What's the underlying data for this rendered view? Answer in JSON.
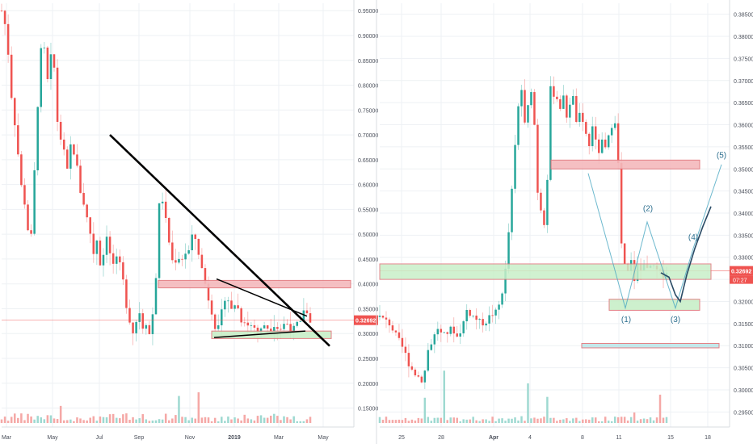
{
  "colors": {
    "up": "#26a69a",
    "down": "#ef5350",
    "vol_up": "#9ed9d1",
    "vol_down": "#f5a8a6",
    "grid": "#eef1f4",
    "axis_text": "#4a4f5a",
    "last_price": "#ef5350",
    "drawing": "#000000",
    "wave": "#4aa7c2",
    "wave_path": "#2a4b66",
    "res_box": "#f4b9bc",
    "sup_box": "#c8efc8"
  },
  "chart_data": [
    {
      "type": "candlestick",
      "panel": "left",
      "title": "",
      "x_ticks": [
        "Mar",
        "May",
        "Jul",
        "Sep",
        "Nov",
        "2019",
        "Mar",
        "May"
      ],
      "y_ticks": [
        "0.95000",
        "0.90000",
        "0.85000",
        "0.80000",
        "0.75000",
        "0.70000",
        "0.65000",
        "0.60000",
        "0.55000",
        "0.50000",
        "0.45000",
        "0.40000",
        "0.35000",
        "0.30000",
        "0.25000",
        "0.20000",
        "0.15000"
      ],
      "ylim": [
        0.12,
        0.965
      ],
      "last_price": "0.32692",
      "close_path": [
        [
          0,
          0.95
        ],
        [
          6,
          0.91
        ],
        [
          12,
          0.78
        ],
        [
          18,
          0.7
        ],
        [
          24,
          0.6
        ],
        [
          30,
          0.55
        ],
        [
          35,
          0.47
        ],
        [
          38,
          0.52
        ],
        [
          42,
          0.68
        ],
        [
          46,
          0.8
        ],
        [
          50,
          0.9
        ],
        [
          54,
          0.86
        ],
        [
          58,
          0.79
        ],
        [
          62,
          0.88
        ],
        [
          66,
          0.82
        ],
        [
          70,
          0.7
        ],
        [
          74,
          0.69
        ],
        [
          78,
          0.66
        ],
        [
          82,
          0.62
        ],
        [
          86,
          0.69
        ],
        [
          90,
          0.66
        ],
        [
          94,
          0.63
        ],
        [
          98,
          0.58
        ],
        [
          102,
          0.56
        ],
        [
          106,
          0.53
        ],
        [
          110,
          0.5
        ],
        [
          114,
          0.46
        ],
        [
          118,
          0.49
        ],
        [
          122,
          0.44
        ],
        [
          126,
          0.46
        ],
        [
          130,
          0.5
        ],
        [
          134,
          0.46
        ],
        [
          138,
          0.44
        ],
        [
          142,
          0.45
        ],
        [
          146,
          0.44
        ],
        [
          150,
          0.41
        ],
        [
          154,
          0.36
        ],
        [
          158,
          0.33
        ],
        [
          162,
          0.3
        ],
        [
          166,
          0.32
        ],
        [
          170,
          0.35
        ],
        [
          174,
          0.31
        ],
        [
          178,
          0.33
        ],
        [
          182,
          0.29
        ],
        [
          186,
          0.33
        ],
        [
          190,
          0.37
        ],
        [
          194,
          0.55
        ],
        [
          198,
          0.58
        ],
        [
          202,
          0.54
        ],
        [
          206,
          0.5
        ],
        [
          210,
          0.45
        ],
        [
          214,
          0.44
        ],
        [
          218,
          0.46
        ],
        [
          222,
          0.44
        ],
        [
          226,
          0.47
        ],
        [
          230,
          0.45
        ],
        [
          234,
          0.49
        ],
        [
          238,
          0.5
        ],
        [
          242,
          0.48
        ],
        [
          246,
          0.44
        ],
        [
          250,
          0.42
        ],
        [
          254,
          0.38
        ],
        [
          258,
          0.36
        ],
        [
          262,
          0.33
        ],
        [
          266,
          0.3
        ],
        [
          270,
          0.32
        ],
        [
          274,
          0.36
        ],
        [
          278,
          0.38
        ],
        [
          282,
          0.36
        ],
        [
          286,
          0.34
        ],
        [
          290,
          0.37
        ],
        [
          294,
          0.34
        ],
        [
          298,
          0.32
        ],
        [
          302,
          0.33
        ],
        [
          306,
          0.31
        ],
        [
          310,
          0.32
        ],
        [
          314,
          0.31
        ],
        [
          318,
          0.3
        ],
        [
          322,
          0.31
        ],
        [
          326,
          0.32
        ],
        [
          330,
          0.31
        ],
        [
          334,
          0.31
        ],
        [
          338,
          0.32
        ],
        [
          342,
          0.31
        ],
        [
          346,
          0.31
        ],
        [
          350,
          0.32
        ],
        [
          354,
          0.32
        ],
        [
          358,
          0.31
        ],
        [
          362,
          0.31
        ],
        [
          366,
          0.32
        ],
        [
          370,
          0.32
        ],
        [
          374,
          0.35
        ],
        [
          378,
          0.34
        ],
        [
          382,
          0.327
        ]
      ]
    },
    {
      "type": "candlestick",
      "panel": "right",
      "title": "",
      "x_ticks": [
        "25",
        "28",
        "Apr",
        "4",
        "8",
        "11",
        "15",
        "18"
      ],
      "y_ticks": [
        "0.38500",
        "0.38000",
        "0.37500",
        "0.37000",
        "0.36500",
        "0.36000",
        "0.35500",
        "0.35000",
        "0.34500",
        "0.34000",
        "0.33500",
        "0.33000",
        "0.32500",
        "0.32000",
        "0.31500",
        "0.31000",
        "0.30500",
        "0.30000",
        "0.29500"
      ],
      "ylim": [
        0.2925,
        0.3875
      ],
      "last_price": "0.32692",
      "countdown": "07:27",
      "wave_labels": [
        "(1)",
        "(2)",
        "(3)",
        "(4)",
        "(5)"
      ],
      "close_path": [
        [
          0,
          0.3165
        ],
        [
          6,
          0.3158
        ],
        [
          12,
          0.315
        ],
        [
          18,
          0.313
        ],
        [
          24,
          0.311
        ],
        [
          30,
          0.309
        ],
        [
          36,
          0.306
        ],
        [
          42,
          0.304
        ],
        [
          48,
          0.303
        ],
        [
          54,
          0.302
        ],
        [
          60,
          0.309
        ],
        [
          66,
          0.3115
        ],
        [
          72,
          0.314
        ],
        [
          78,
          0.312
        ],
        [
          84,
          0.313
        ],
        [
          90,
          0.314
        ],
        [
          96,
          0.312
        ],
        [
          102,
          0.314
        ],
        [
          108,
          0.318
        ],
        [
          114,
          0.317
        ],
        [
          120,
          0.316
        ],
        [
          126,
          0.315
        ],
        [
          132,
          0.3155
        ],
        [
          138,
          0.317
        ],
        [
          144,
          0.3175
        ],
        [
          150,
          0.32
        ],
        [
          156,
          0.327
        ],
        [
          162,
          0.34
        ],
        [
          168,
          0.355
        ],
        [
          172,
          0.364
        ],
        [
          176,
          0.368
        ],
        [
          180,
          0.36
        ],
        [
          184,
          0.364
        ],
        [
          188,
          0.368
        ],
        [
          192,
          0.36
        ],
        [
          196,
          0.345
        ],
        [
          200,
          0.341
        ],
        [
          204,
          0.338
        ],
        [
          208,
          0.348
        ],
        [
          212,
          0.368
        ],
        [
          216,
          0.367
        ],
        [
          220,
          0.366
        ],
        [
          224,
          0.364
        ],
        [
          228,
          0.366
        ],
        [
          232,
          0.362
        ],
        [
          236,
          0.365
        ],
        [
          240,
          0.366
        ],
        [
          244,
          0.361
        ],
        [
          248,
          0.362
        ],
        [
          252,
          0.36
        ],
        [
          256,
          0.358
        ],
        [
          260,
          0.355
        ],
        [
          264,
          0.36
        ],
        [
          268,
          0.356
        ],
        [
          272,
          0.354
        ],
        [
          276,
          0.356
        ],
        [
          280,
          0.3545
        ],
        [
          284,
          0.357
        ],
        [
          288,
          0.36
        ],
        [
          292,
          0.361
        ],
        [
          296,
          0.351
        ],
        [
          300,
          0.333
        ],
        [
          304,
          0.328
        ],
        [
          308,
          0.3265
        ],
        [
          312,
          0.329
        ],
        [
          316,
          0.325
        ],
        [
          320,
          0.328
        ],
        [
          324,
          0.327
        ],
        [
          328,
          0.329
        ],
        [
          332,
          0.327
        ],
        [
          336,
          0.328
        ],
        [
          340,
          0.3275
        ],
        [
          344,
          0.327
        ],
        [
          348,
          0.3265
        ],
        [
          352,
          0.326
        ],
        [
          356,
          0.3269
        ]
      ]
    }
  ]
}
